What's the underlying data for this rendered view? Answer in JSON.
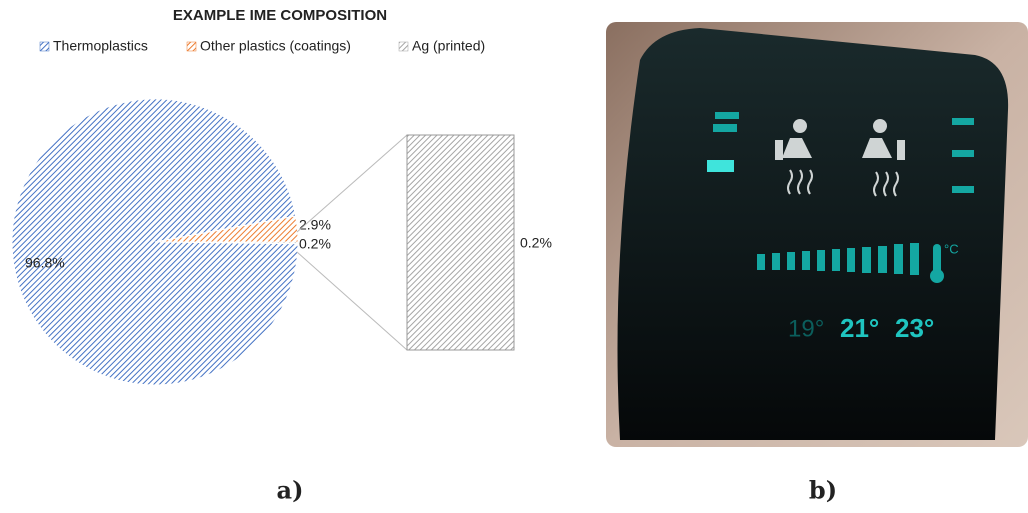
{
  "chart_data": {
    "type": "pie",
    "title": "EXAMPLE IME COMPOSITION",
    "categories": [
      "Thermoplastics",
      "Other plastics (coatings)",
      "Ag (printed)"
    ],
    "values": [
      96.8,
      2.9,
      0.2
    ],
    "value_labels": [
      "96.8%",
      "2.9%",
      "0.2%"
    ],
    "colors": [
      "#4472c4",
      "#ed7d31",
      "#a5a5a5"
    ],
    "legend": "top",
    "breakout": {
      "values": [
        0.2
      ],
      "value_labels": [
        "0.2%"
      ]
    }
  },
  "photo": {
    "temperatures": [
      "19°",
      "21°",
      "23°"
    ],
    "unit": "°C"
  },
  "panels": {
    "a": "a)",
    "b": "b)"
  }
}
